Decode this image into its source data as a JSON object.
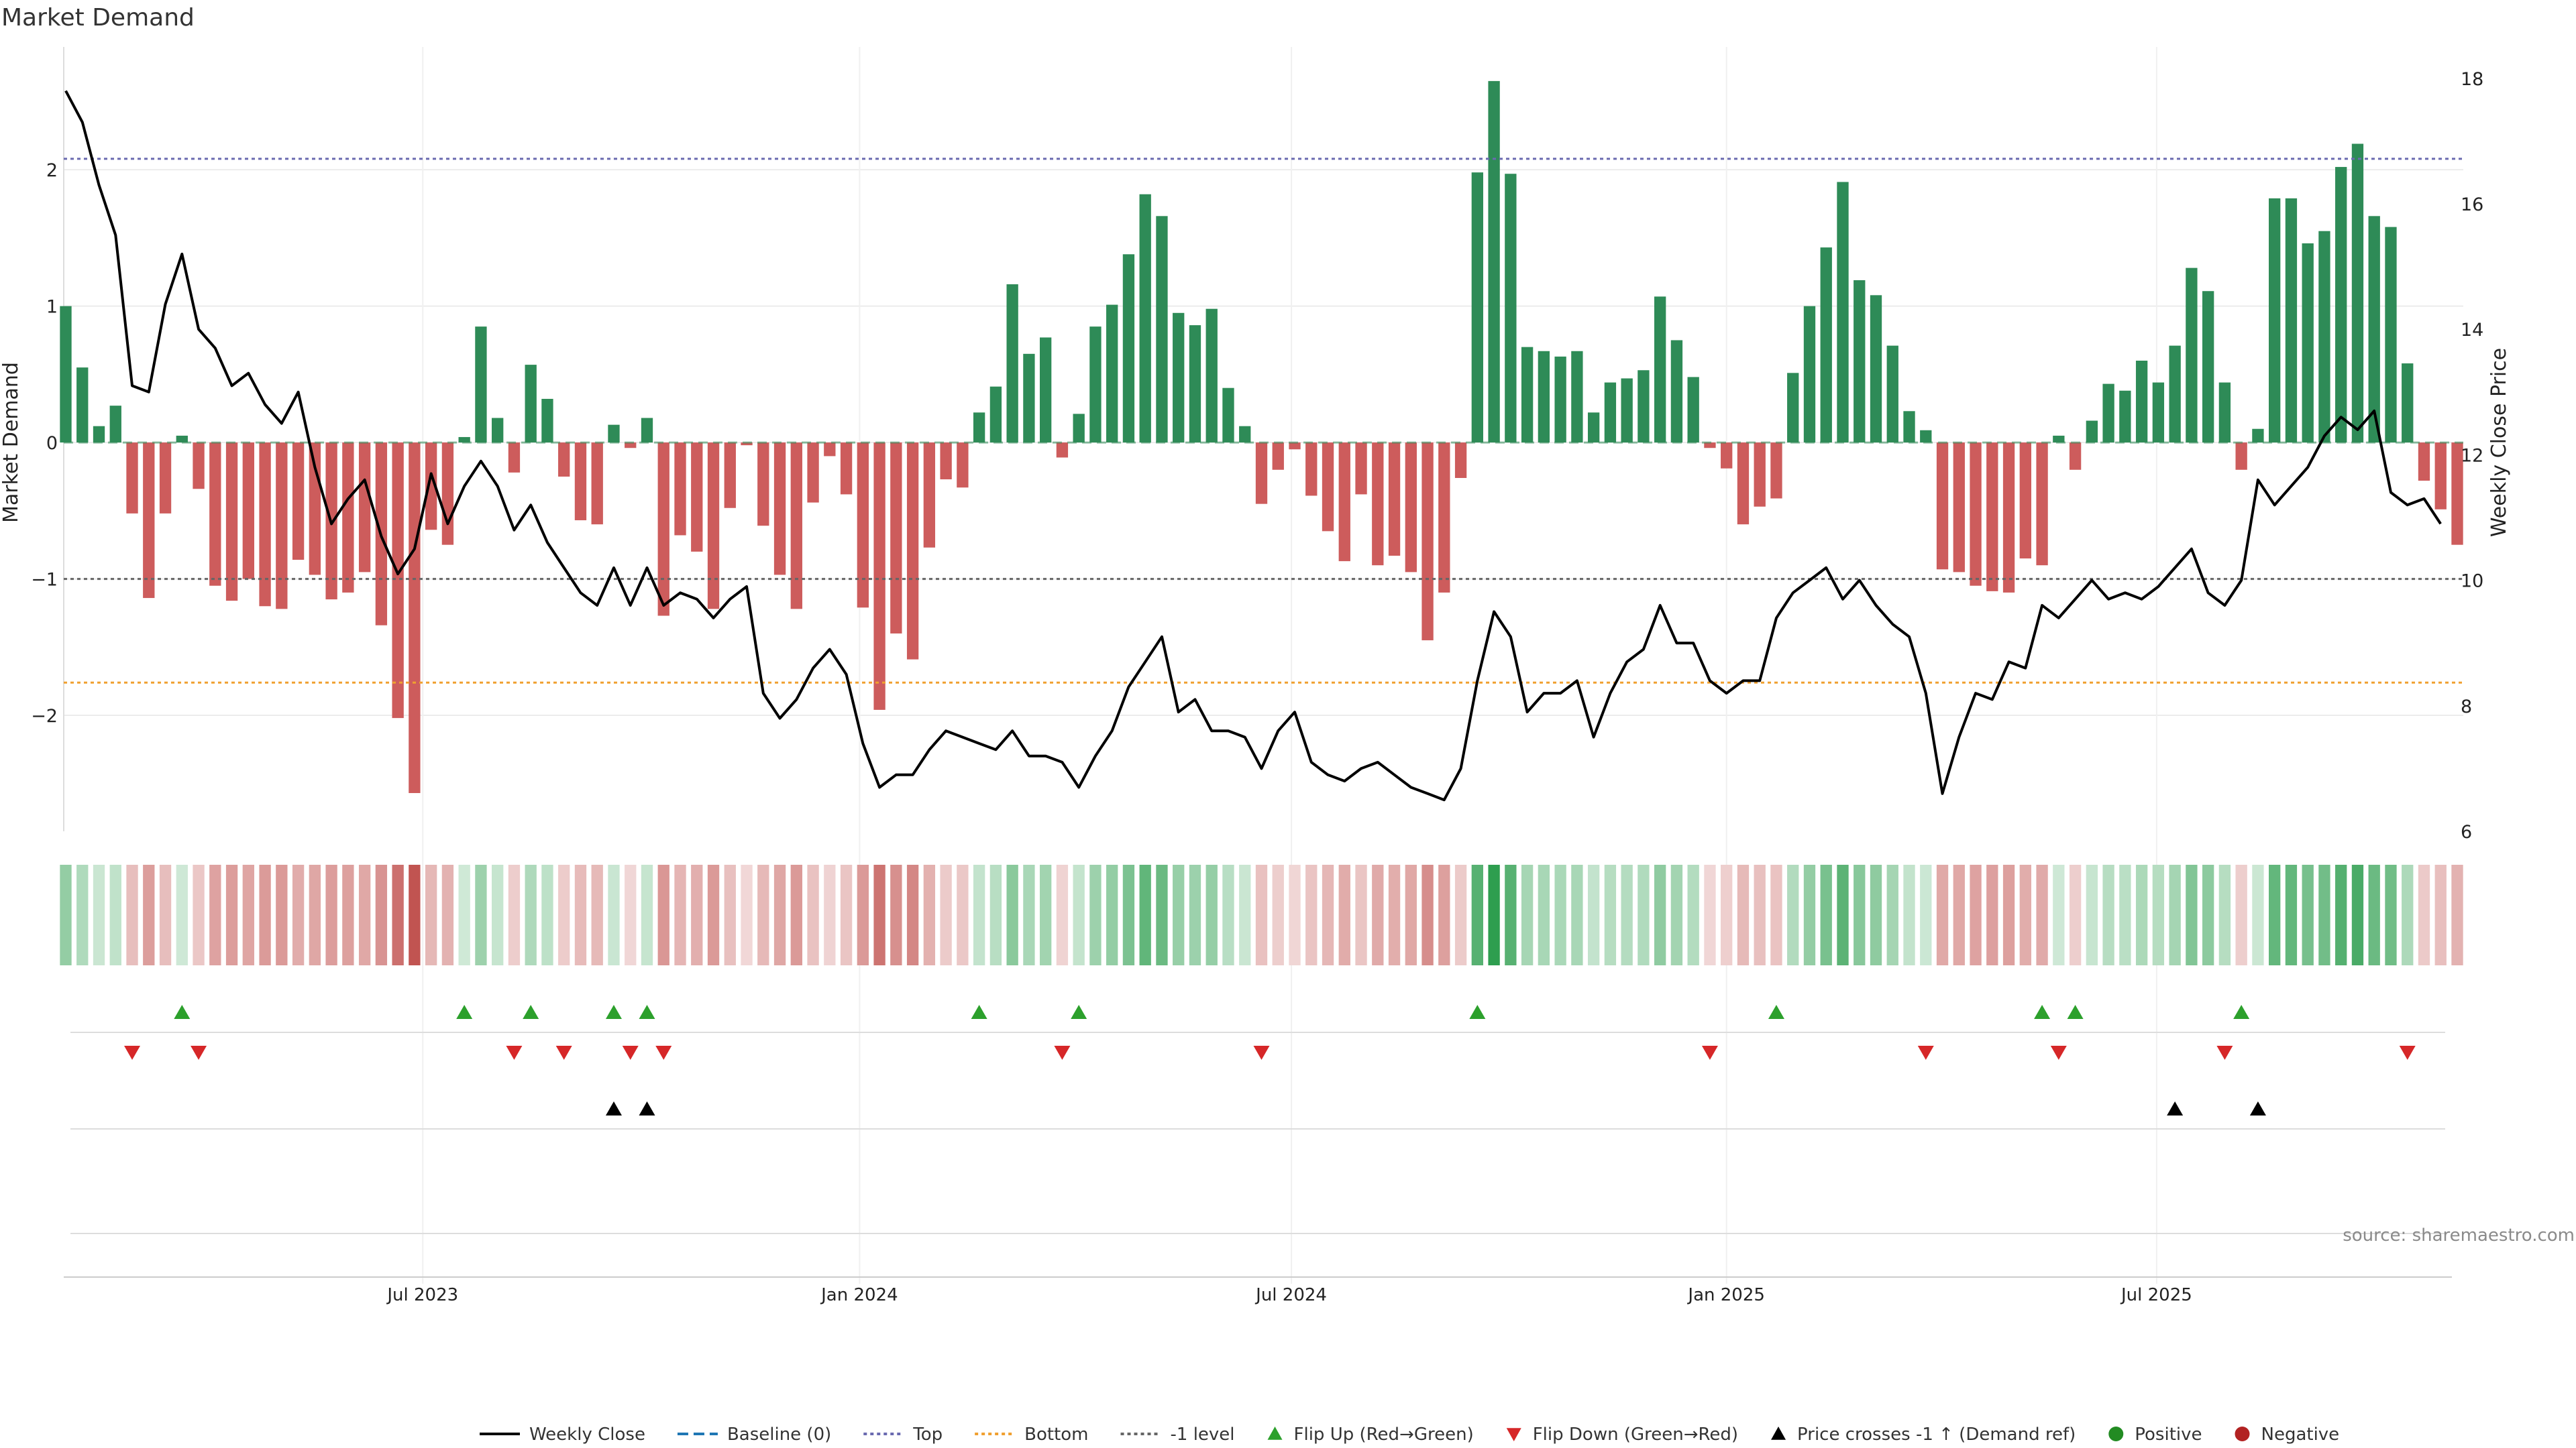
{
  "chart_data": {
    "type": "bar",
    "title": "Market Demand",
    "source": "source: sharemaestro.com",
    "ylabel": "Market Demand",
    "y2label": "Weekly Close Price",
    "ylim": [
      -2.85,
      2.9
    ],
    "y2lim": [
      6,
      18.5
    ],
    "yticks": [
      2,
      1,
      0,
      -1,
      -2
    ],
    "ytick_labels": [
      "2",
      "1",
      "0",
      "−1",
      "−2"
    ],
    "y2ticks": [
      6,
      8,
      10,
      12,
      14,
      16,
      18
    ],
    "y2tick_labels": [
      "6",
      "8",
      "10",
      "12",
      "14",
      "16",
      "18"
    ],
    "x_labels": [
      {
        "label": "Jul 2023",
        "week": 21.5
      },
      {
        "label": "Jan 2024",
        "week": 47.8
      },
      {
        "label": "Jul 2024",
        "week": 73.8
      },
      {
        "label": "Jan 2025",
        "week": 100.0
      },
      {
        "label": "Jul 2025",
        "week": 125.9
      }
    ],
    "reference_lines": {
      "top": 2.08,
      "bottom": -1.76,
      "minus_one": -1.0,
      "baseline": 0
    },
    "colors": {
      "positive": "#2e8b57",
      "negative": "#cd5c5c",
      "price": "#000000",
      "top_line": "#6a6ab0",
      "bottom_line": "#f0a030",
      "minus_one_line": "#666666",
      "flip_up": "#2ca02c",
      "flip_down": "#d62728",
      "crosses": "#000000"
    },
    "demand": [
      1.0,
      0.55,
      0.12,
      0.27,
      -0.52,
      -1.14,
      -0.52,
      0.05,
      -0.34,
      -1.05,
      -1.16,
      -1.0,
      -1.2,
      -1.22,
      -0.86,
      -0.97,
      -1.15,
      -1.1,
      -0.95,
      -1.34,
      -2.02,
      -2.57,
      -0.64,
      -0.75,
      0.04,
      0.85,
      0.18,
      -0.22,
      0.57,
      0.32,
      -0.25,
      -0.57,
      -0.6,
      0.13,
      -0.04,
      0.18,
      -1.27,
      -0.68,
      -0.8,
      -1.22,
      -0.48,
      -0.02,
      -0.61,
      -0.97,
      -1.22,
      -0.44,
      -0.1,
      -0.38,
      -1.21,
      -1.96,
      -1.4,
      -1.59,
      -0.77,
      -0.27,
      -0.33,
      0.22,
      0.41,
      1.16,
      0.65,
      0.77,
      -0.11,
      0.21,
      0.85,
      1.01,
      1.38,
      1.82,
      1.66,
      0.95,
      0.86,
      0.98,
      0.4,
      0.12,
      -0.45,
      -0.2,
      -0.05,
      -0.39,
      -0.65,
      -0.87,
      -0.38,
      -0.9,
      -0.83,
      -0.95,
      -1.45,
      -1.1,
      -0.26,
      1.98,
      2.65,
      1.97,
      0.7,
      0.67,
      0.63,
      0.67,
      0.22,
      0.44,
      0.47,
      0.53,
      1.07,
      0.75,
      0.48,
      -0.04,
      -0.19,
      -0.6,
      -0.47,
      -0.41,
      0.51,
      1.0,
      1.43,
      1.91,
      1.19,
      1.08,
      0.71,
      0.23,
      0.09,
      -0.93,
      -0.95,
      -1.05,
      -1.09,
      -1.1,
      -0.85,
      -0.9,
      0.05,
      -0.2,
      0.16,
      0.43,
      0.38,
      0.6,
      0.44,
      0.71,
      1.28,
      1.11,
      0.44,
      -0.2,
      0.1,
      1.79,
      1.79,
      1.46,
      1.55,
      2.02,
      2.19,
      1.66,
      1.58,
      0.58,
      -0.28,
      -0.49,
      -0.75
    ],
    "price": [
      17.8,
      17.3,
      16.3,
      15.5,
      13.1,
      13.0,
      14.4,
      15.2,
      14.0,
      13.7,
      13.1,
      13.3,
      12.8,
      12.5,
      13.0,
      11.8,
      10.9,
      11.3,
      11.6,
      10.7,
      10.1,
      10.5,
      11.7,
      10.9,
      11.5,
      11.9,
      11.5,
      10.8,
      11.2,
      10.6,
      10.2,
      9.8,
      9.6,
      10.2,
      9.6,
      10.2,
      9.6,
      9.8,
      9.7,
      9.4,
      9.7,
      9.9,
      8.2,
      7.8,
      8.1,
      8.6,
      8.9,
      8.5,
      7.4,
      6.7,
      6.9,
      6.9,
      7.3,
      7.6,
      7.5,
      7.4,
      7.3,
      7.6,
      7.2,
      7.2,
      7.1,
      6.7,
      7.2,
      7.6,
      8.3,
      8.7,
      9.1,
      7.9,
      8.1,
      7.6,
      7.6,
      7.5,
      7.0,
      7.6,
      7.9,
      7.1,
      6.9,
      6.8,
      7.0,
      7.1,
      6.9,
      6.7,
      6.6,
      6.5,
      7.0,
      8.4,
      9.5,
      9.1,
      7.9,
      8.2,
      8.2,
      8.4,
      7.5,
      8.2,
      8.7,
      8.9,
      9.6,
      9.0,
      9.0,
      8.4,
      8.2,
      8.4,
      8.4,
      9.4,
      9.8,
      10.0,
      10.2,
      9.7,
      10.0,
      9.6,
      9.3,
      9.1,
      8.2,
      6.6,
      7.5,
      8.2,
      8.1,
      8.7,
      8.6,
      9.6,
      9.4,
      9.7,
      10.0,
      9.7,
      9.8,
      9.7,
      9.9,
      10.2,
      10.5,
      9.8,
      9.6,
      10.0,
      11.6,
      11.2,
      11.5,
      11.8,
      12.3,
      12.6,
      12.4,
      12.7,
      11.4,
      11.2,
      11.3,
      10.9
    ],
    "flip_up_weeks": [
      7,
      24,
      28,
      33,
      35,
      55,
      61,
      85,
      103,
      119,
      121,
      131
    ],
    "flip_down_weeks": [
      4,
      8,
      27,
      30,
      34,
      36,
      60,
      72,
      99,
      112,
      120,
      130,
      141
    ],
    "price_cross_weeks": [
      33,
      35,
      127,
      132
    ],
    "legend": [
      {
        "label": "Weekly Close",
        "symbol": "line-solid",
        "color": "#000000"
      },
      {
        "label": "Baseline (0)",
        "symbol": "line-dashed",
        "color": "#1f77b4"
      },
      {
        "label": "Top",
        "symbol": "line-dotted",
        "color": "#6a6ab0"
      },
      {
        "label": "Bottom",
        "symbol": "line-dotted",
        "color": "#f0a030"
      },
      {
        "label": "-1 level",
        "symbol": "line-dotted",
        "color": "#666666"
      },
      {
        "label": "Flip Up (Red→Green)",
        "symbol": "triangle-up",
        "color": "#2ca02c"
      },
      {
        "label": "Flip Down (Green→Red)",
        "symbol": "triangle-down",
        "color": "#d62728"
      },
      {
        "label": "Price crosses -1 ↑ (Demand ref)",
        "symbol": "triangle-up",
        "color": "#000000"
      },
      {
        "label": "Positive",
        "symbol": "circle",
        "color": "#228b22"
      },
      {
        "label": "Negative",
        "symbol": "circle",
        "color": "#b22222"
      }
    ]
  }
}
